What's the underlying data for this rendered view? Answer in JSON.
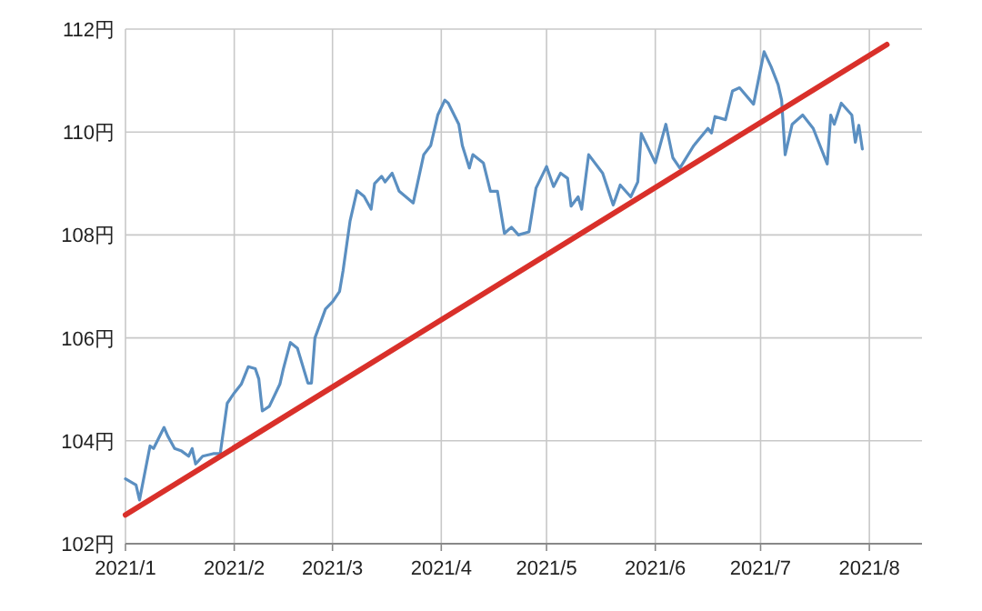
{
  "chart_data": {
    "type": "line",
    "xlim": [
      "2021-01-01",
      "2021-08-16"
    ],
    "ylim": [
      102,
      112
    ],
    "xticks": [
      {
        "value": "2021-01-01",
        "label": "2021/1"
      },
      {
        "value": "2021-02-01",
        "label": "2021/2"
      },
      {
        "value": "2021-03-01",
        "label": "2021/3"
      },
      {
        "value": "2021-04-01",
        "label": "2021/4"
      },
      {
        "value": "2021-05-01",
        "label": "2021/5"
      },
      {
        "value": "2021-06-01",
        "label": "2021/6"
      },
      {
        "value": "2021-07-01",
        "label": "2021/7"
      },
      {
        "value": "2021-08-01",
        "label": "2021/8"
      }
    ],
    "yticks": [
      {
        "value": 102,
        "label": "102円"
      },
      {
        "value": 104,
        "label": "104円"
      },
      {
        "value": 106,
        "label": "106円"
      },
      {
        "value": 108,
        "label": "108円"
      },
      {
        "value": 110,
        "label": "110円"
      },
      {
        "value": 112,
        "label": "112円"
      }
    ],
    "grid": true,
    "x": [
      "2021-01-01",
      "2021-01-04",
      "2021-01-05",
      "2021-01-08",
      "2021-01-09",
      "2021-01-12",
      "2021-01-13",
      "2021-01-15",
      "2021-01-17",
      "2021-01-19",
      "2021-01-20",
      "2021-01-21",
      "2021-01-23",
      "2021-01-26",
      "2021-01-28",
      "2021-01-30",
      "2021-02-01",
      "2021-02-03",
      "2021-02-05",
      "2021-02-07",
      "2021-02-08",
      "2021-02-09",
      "2021-02-11",
      "2021-02-14",
      "2021-02-15",
      "2021-02-17",
      "2021-02-19",
      "2021-02-22",
      "2021-02-23",
      "2021-02-24",
      "2021-02-27",
      "2021-03-01",
      "2021-03-03",
      "2021-03-04",
      "2021-03-06",
      "2021-03-08",
      "2021-03-10",
      "2021-03-12",
      "2021-03-13",
      "2021-03-15",
      "2021-03-16",
      "2021-03-18",
      "2021-03-20",
      "2021-03-24",
      "2021-03-27",
      "2021-03-29",
      "2021-03-31",
      "2021-04-02",
      "2021-04-03",
      "2021-04-06",
      "2021-04-07",
      "2021-04-09",
      "2021-04-10",
      "2021-04-13",
      "2021-04-15",
      "2021-04-17",
      "2021-04-19",
      "2021-04-21",
      "2021-04-23",
      "2021-04-26",
      "2021-04-28",
      "2021-05-01",
      "2021-05-03",
      "2021-05-05",
      "2021-05-07",
      "2021-05-08",
      "2021-05-10",
      "2021-05-11",
      "2021-05-13",
      "2021-05-17",
      "2021-05-20",
      "2021-05-22",
      "2021-05-25",
      "2021-05-27",
      "2021-05-28",
      "2021-06-01",
      "2021-06-04",
      "2021-06-06",
      "2021-06-08",
      "2021-06-12",
      "2021-06-16",
      "2021-06-17",
      "2021-06-18",
      "2021-06-21",
      "2021-06-23",
      "2021-06-25",
      "2021-06-29",
      "2021-07-02",
      "2021-07-04",
      "2021-07-06",
      "2021-07-07",
      "2021-07-08",
      "2021-07-10",
      "2021-07-13",
      "2021-07-16",
      "2021-07-20",
      "2021-07-21",
      "2021-07-22",
      "2021-07-24",
      "2021-07-27",
      "2021-07-28",
      "2021-07-29",
      "2021-07-30"
    ],
    "series": [
      {
        "color": "#5b8fc1",
        "values": [
          103.26,
          103.14,
          102.85,
          103.9,
          103.85,
          104.26,
          104.1,
          103.85,
          103.8,
          103.7,
          103.85,
          103.55,
          103.7,
          103.75,
          103.75,
          104.73,
          104.93,
          105.1,
          105.44,
          105.4,
          105.2,
          104.58,
          104.67,
          105.1,
          105.4,
          105.91,
          105.8,
          105.12,
          105.12,
          106.0,
          106.56,
          106.7,
          106.9,
          107.3,
          108.27,
          108.86,
          108.75,
          108.5,
          109.0,
          109.14,
          109.03,
          109.2,
          108.85,
          108.62,
          109.56,
          109.74,
          110.33,
          110.62,
          110.56,
          110.15,
          109.74,
          109.3,
          109.56,
          109.4,
          108.85,
          108.85,
          108.03,
          108.15,
          108.0,
          108.06,
          108.91,
          109.33,
          108.94,
          109.2,
          109.1,
          108.56,
          108.74,
          108.5,
          109.56,
          109.2,
          108.58,
          108.97,
          108.74,
          109.03,
          109.97,
          109.4,
          110.15,
          109.5,
          109.3,
          109.74,
          110.07,
          109.98,
          110.3,
          110.24,
          110.8,
          110.86,
          110.54,
          111.56,
          111.27,
          110.92,
          110.62,
          109.56,
          110.15,
          110.33,
          110.07,
          109.38,
          110.33,
          110.15,
          110.56,
          110.33,
          109.8,
          110.13,
          109.67
        ]
      },
      {
        "type": "line",
        "color": "#d9302a",
        "x": [
          "2021-01-01",
          "2021-08-06"
        ],
        "values": [
          102.56,
          111.7
        ]
      }
    ]
  }
}
